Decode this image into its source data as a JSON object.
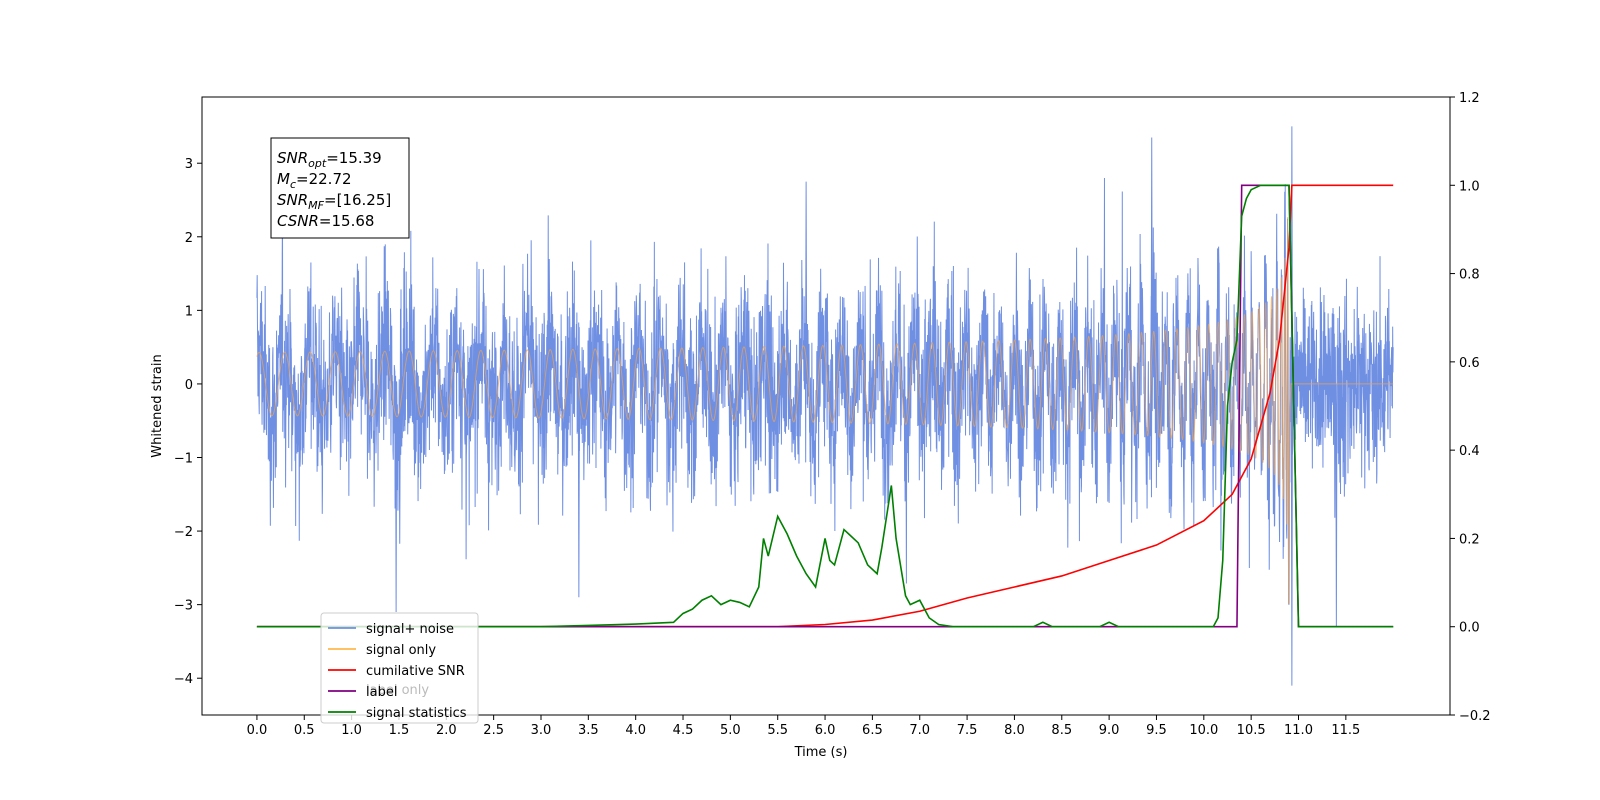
{
  "chart_data": {
    "type": "line",
    "xlabel": "Time (s)",
    "ylabel_left": "Whitened strain",
    "ylabel_right": "",
    "xlim": [
      -0.58,
      12.6
    ],
    "ylim_left": [
      -4.5,
      3.9
    ],
    "ylim_right": [
      -0.2,
      1.2
    ],
    "x_ticks": [
      "0.0",
      "0.5",
      "1.0",
      "1.5",
      "2.0",
      "2.5",
      "3.0",
      "3.5",
      "4.0",
      "4.5",
      "5.0",
      "5.5",
      "6.0",
      "6.5",
      "7.0",
      "7.5",
      "8.0",
      "8.5",
      "9.0",
      "9.5",
      "10.0",
      "10.5",
      "11.0",
      "11.5"
    ],
    "y_ticks_left": [
      "3",
      "2",
      "1",
      "0",
      "−1",
      "−2",
      "−3",
      "−4"
    ],
    "y_ticks_right": [
      "1.2",
      "1.0",
      "0.8",
      "0.6",
      "0.4",
      "0.2",
      "0.0",
      "−0.2"
    ],
    "grid": false,
    "legend_position": "lower-left",
    "stats_box": [
      {
        "sym": "SNR",
        "sub": "opt",
        "value": "=15.39"
      },
      {
        "sym": "M",
        "sub": "c",
        "value": "=22.72"
      },
      {
        "sym": "SNR",
        "sub": "MF",
        "value": "=[16.25]"
      },
      {
        "sym": "CSNR",
        "sub": "",
        "value": "=15.68"
      }
    ],
    "legend": [
      {
        "label": "signal+ noise",
        "color": "#6f8fe3"
      },
      {
        "label": "signal only",
        "color": "#ffb84d"
      },
      {
        "label": "cumilative SNR",
        "color": "#ff0000"
      },
      {
        "label": "label",
        "color": "#800080"
      },
      {
        "label": "signal statistics",
        "color": "#008000"
      }
    ],
    "hidden_legend_label": "label only",
    "series": [
      {
        "name": "signal+ noise",
        "axis": "left",
        "color": "#6f8fe3",
        "kind": "noise",
        "x_range": [
          0.0,
          12.0
        ],
        "typical_amplitude": 1.7,
        "peaks": [
          [
            1.47,
            -3.1
          ],
          [
            3.4,
            -2.9
          ],
          [
            5.8,
            2.75
          ],
          [
            9.45,
            3.35
          ],
          [
            10.93,
            3.5
          ],
          [
            10.93,
            -4.1
          ],
          [
            11.4,
            -3.3
          ]
        ]
      },
      {
        "name": "signal only",
        "axis": "left",
        "color": "#e8a35a",
        "kind": "chirp",
        "x_range": [
          0.0,
          12.0
        ],
        "merger_time": 10.9,
        "peak_amplitude": 3.1
      },
      {
        "name": "cumilative SNR",
        "axis": "right",
        "x": [
          0.0,
          5.0,
          5.5,
          6.0,
          6.5,
          7.0,
          7.5,
          8.0,
          8.5,
          9.0,
          9.5,
          10.0,
          10.3,
          10.5,
          10.7,
          10.8,
          10.9,
          10.93,
          12.0
        ],
        "y": [
          0.0,
          0.0,
          0.0,
          0.005,
          0.015,
          0.035,
          0.065,
          0.09,
          0.115,
          0.15,
          0.185,
          0.24,
          0.3,
          0.38,
          0.53,
          0.65,
          0.86,
          1.0,
          1.0
        ]
      },
      {
        "name": "label",
        "axis": "right",
        "x": [
          0.0,
          10.35,
          10.4,
          10.9,
          11.0,
          12.0
        ],
        "y": [
          0.0,
          0.0,
          1.0,
          1.0,
          0.0,
          0.0
        ]
      },
      {
        "name": "signal statistics",
        "axis": "right",
        "x": [
          0.0,
          3.0,
          3.5,
          4.0,
          4.4,
          4.5,
          4.6,
          4.7,
          4.8,
          4.9,
          5.0,
          5.1,
          5.2,
          5.3,
          5.35,
          5.4,
          5.5,
          5.6,
          5.7,
          5.8,
          5.9,
          6.0,
          6.05,
          6.1,
          6.2,
          6.25,
          6.35,
          6.45,
          6.55,
          6.6,
          6.7,
          6.75,
          6.85,
          6.9,
          7.0,
          7.1,
          7.2,
          7.35,
          7.5,
          8.2,
          8.3,
          8.4,
          8.9,
          9.0,
          9.1,
          9.2,
          10.1,
          10.15,
          10.2,
          10.25,
          10.3,
          10.35,
          10.4,
          10.45,
          10.5,
          10.6,
          10.7,
          10.8,
          10.9,
          11.0,
          12.0
        ],
        "y": [
          0.0,
          0.0,
          0.003,
          0.006,
          0.01,
          0.03,
          0.04,
          0.06,
          0.07,
          0.05,
          0.06,
          0.055,
          0.045,
          0.09,
          0.2,
          0.16,
          0.25,
          0.21,
          0.16,
          0.12,
          0.09,
          0.2,
          0.15,
          0.14,
          0.22,
          0.21,
          0.19,
          0.14,
          0.12,
          0.18,
          0.32,
          0.2,
          0.07,
          0.05,
          0.06,
          0.02,
          0.005,
          0.0,
          0.0,
          0.0,
          0.01,
          0.0,
          0.0,
          0.01,
          0.0,
          0.0,
          0.0,
          0.02,
          0.15,
          0.5,
          0.6,
          0.65,
          0.93,
          0.97,
          0.99,
          1.0,
          1.0,
          1.0,
          1.0,
          0.0,
          0.0
        ]
      }
    ]
  }
}
